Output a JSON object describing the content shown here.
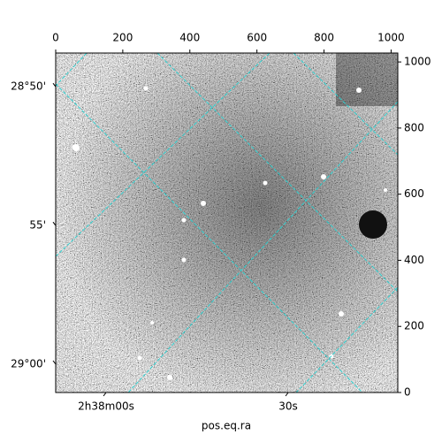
{
  "chart_data": {
    "type": "image",
    "xlabel": "pos.eq.ra",
    "xlim": [
      0,
      1020
    ],
    "xticks": [
      0,
      200,
      400,
      600,
      800,
      1000
    ],
    "ylim": [
      0,
      1027
    ],
    "yticks": [
      0,
      200,
      400,
      600,
      800,
      1000
    ],
    "ra_lim": [
      39.4654,
      39.7002
    ],
    "ra_ticks": [
      {
        "value": 39.5,
        "label": "2h38m00s"
      },
      {
        "value": 39.625,
        "label": "30s"
      }
    ],
    "dec_lim": [
      29.017,
      28.813
    ],
    "dec_ticks": [
      {
        "value": 28.8333,
        "label": "28°50'"
      },
      {
        "value": 28.9167,
        "label": "55'"
      },
      {
        "value": 29.0,
        "label": "29°00'"
      }
    ]
  }
}
